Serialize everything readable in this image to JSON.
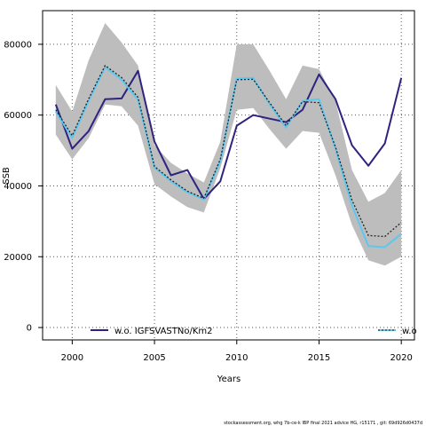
{
  "chart_data": {
    "type": "line",
    "xlabel": "Years",
    "ylabel": "SSB",
    "xlim": [
      1998.2,
      2020.8
    ],
    "ylim": [
      -3500,
      89500
    ],
    "grid": true,
    "x_ticks": [
      2000,
      2005,
      2010,
      2015,
      2020
    ],
    "x_tick_labels": [
      "2000",
      "2005",
      "2010",
      "2015",
      "2020"
    ],
    "y_ticks": [
      0,
      20000,
      40000,
      60000,
      80000
    ],
    "y_tick_labels": [
      "0",
      "20000",
      "40000",
      "60000",
      "80000"
    ],
    "x": [
      1999,
      2000,
      2001,
      2002,
      2003,
      2004,
      2005,
      2006,
      2007,
      2008,
      2009,
      2010,
      2011,
      2012,
      2013,
      2014,
      2015,
      2016,
      2017,
      2018,
      2019,
      2020
    ],
    "band": {
      "lower": [
        54500,
        47500,
        53500,
        63000,
        62500,
        57000,
        40500,
        37000,
        34000,
        32500,
        45000,
        61500,
        62000,
        56000,
        50500,
        55500,
        55000,
        43000,
        29000,
        19000,
        17500,
        20000
      ],
      "upper": [
        68500,
        61000,
        75500,
        86000,
        80500,
        74000,
        51500,
        46500,
        43500,
        41000,
        52500,
        80000,
        80000,
        72500,
        64500,
        74000,
        73000,
        64000,
        44500,
        35500,
        38000,
        44500
      ]
    },
    "series": [
      {
        "name": "w.o. IGFSVASTNo/Km2",
        "color": "#2e2480",
        "values": [
          63000,
          50500,
          55500,
          64500,
          64700,
          72500,
          52500,
          43000,
          44500,
          36300,
          41300,
          57000,
          60000,
          59000,
          58000,
          61500,
          71500,
          64500,
          51500,
          45700,
          52000,
          70500
        ]
      },
      {
        "name": "",
        "color": "#222222",
        "dashed": true,
        "values": [
          61500,
          54200,
          64600,
          74000,
          70600,
          65000,
          45500,
          41700,
          38500,
          36500,
          47500,
          70000,
          70100,
          63500,
          57000,
          63800,
          63500,
          51000,
          36000,
          26000,
          25700,
          29700
        ]
      },
      {
        "name": "w.o",
        "color": "#5bc8f0",
        "values": [
          61000,
          53500,
          64000,
          73500,
          70000,
          64300,
          45200,
          41300,
          38200,
          36200,
          47000,
          70300,
          70500,
          63000,
          56500,
          64000,
          64500,
          50500,
          34500,
          23000,
          22700,
          26500
        ]
      }
    ]
  },
  "footer": "stockassessment.org, whg 7b-ce-k  IBP  final  2021  advice  HG,  r15171 ,  git: 69d926d0437d"
}
